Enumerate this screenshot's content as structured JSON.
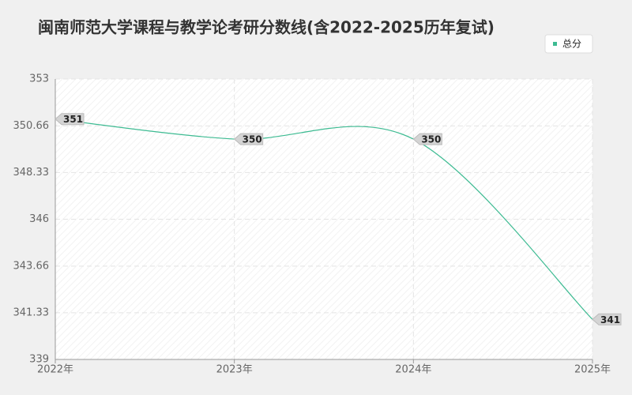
{
  "chart_data": {
    "type": "line",
    "title": "闽南师范大学课程与教学论考研分数线(含2022-2025历年复试)",
    "categories": [
      "2022年",
      "2023年",
      "2024年",
      "2025年"
    ],
    "series": [
      {
        "name": "总分",
        "color": "#3dbb92",
        "values": [
          351,
          350,
          350,
          341
        ]
      }
    ],
    "ylim": [
      339,
      353
    ],
    "yticks": [
      339,
      341.33,
      343.66,
      346,
      348.33,
      350.66,
      353
    ],
    "grid": true,
    "legend": "top-right"
  }
}
